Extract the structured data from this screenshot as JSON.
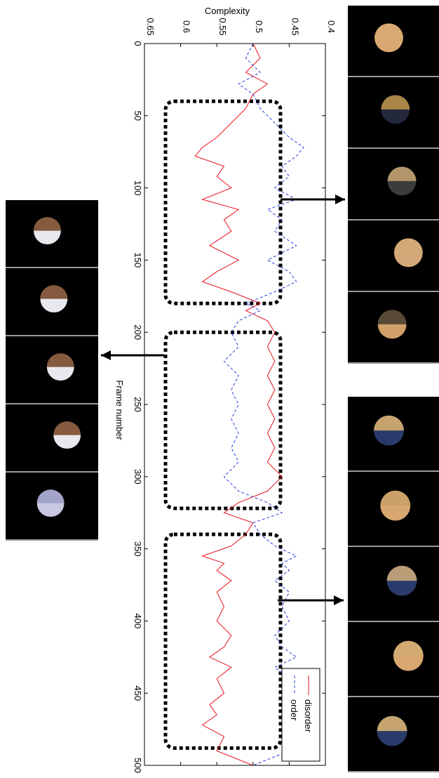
{
  "chart_data": {
    "type": "line",
    "orientation": "rotated-90-clockwise",
    "xlabel": "Frame number",
    "ylabel": "Complexity",
    "xlim": [
      0,
      500
    ],
    "ylim": [
      0.4,
      0.65
    ],
    "x_ticks": [
      "0",
      "50",
      "100",
      "150",
      "200",
      "250",
      "300",
      "350",
      "400",
      "450",
      "500"
    ],
    "y_ticks": [
      "0.4",
      "0.45",
      "0.5",
      "0.55",
      "0.6",
      "0.65"
    ],
    "legend_position": "bottom-right",
    "series": [
      {
        "name": "disorder",
        "color": "#e8141e",
        "style": "solid",
        "x": [
          0,
          10,
          20,
          28,
          35,
          45,
          55,
          65,
          72,
          78,
          85,
          92,
          100,
          108,
          115,
          122,
          130,
          140,
          150,
          158,
          165,
          172,
          180,
          185,
          192,
          200,
          210,
          220,
          230,
          240,
          250,
          260,
          270,
          280,
          290,
          300,
          310,
          318,
          325,
          332,
          340,
          348,
          355,
          360,
          365,
          372,
          380,
          390,
          400,
          410,
          418,
          425,
          432,
          440,
          450,
          458,
          465,
          472,
          480,
          490,
          500
        ],
        "y": [
          0.5,
          0.49,
          0.51,
          0.48,
          0.5,
          0.51,
          0.53,
          0.55,
          0.57,
          0.58,
          0.54,
          0.55,
          0.53,
          0.57,
          0.52,
          0.54,
          0.53,
          0.56,
          0.52,
          0.55,
          0.57,
          0.53,
          0.49,
          0.51,
          0.48,
          0.47,
          0.48,
          0.47,
          0.48,
          0.47,
          0.48,
          0.47,
          0.48,
          0.47,
          0.48,
          0.46,
          0.48,
          0.52,
          0.54,
          0.5,
          0.51,
          0.53,
          0.57,
          0.54,
          0.55,
          0.53,
          0.55,
          0.54,
          0.55,
          0.53,
          0.54,
          0.56,
          0.53,
          0.55,
          0.54,
          0.56,
          0.55,
          0.57,
          0.54,
          0.55,
          0.5
        ]
      },
      {
        "name": "order",
        "color": "#2a3fe0",
        "style": "dashed",
        "x": [
          0,
          10,
          20,
          28,
          35,
          45,
          55,
          65,
          72,
          78,
          85,
          92,
          100,
          108,
          115,
          122,
          130,
          140,
          150,
          158,
          165,
          172,
          180,
          185,
          192,
          200,
          210,
          220,
          230,
          240,
          250,
          260,
          270,
          280,
          290,
          300,
          310,
          318,
          325,
          332,
          340,
          348,
          355,
          360,
          365,
          372,
          380,
          390,
          400,
          410,
          418,
          425,
          432,
          440,
          450,
          458,
          465,
          472,
          480,
          490,
          500
        ],
        "y": [
          0.5,
          0.51,
          0.49,
          0.52,
          0.5,
          0.49,
          0.47,
          0.45,
          0.43,
          0.44,
          0.46,
          0.45,
          0.47,
          0.44,
          0.48,
          0.46,
          0.47,
          0.44,
          0.48,
          0.45,
          0.44,
          0.47,
          0.51,
          0.49,
          0.52,
          0.53,
          0.52,
          0.54,
          0.52,
          0.53,
          0.52,
          0.53,
          0.52,
          0.53,
          0.52,
          0.54,
          0.52,
          0.48,
          0.46,
          0.5,
          0.49,
          0.47,
          0.44,
          0.46,
          0.45,
          0.47,
          0.45,
          0.46,
          0.45,
          0.47,
          0.46,
          0.44,
          0.47,
          0.45,
          0.46,
          0.44,
          0.45,
          0.43,
          0.46,
          0.45,
          0.5
        ]
      }
    ],
    "highlight_ranges": [
      [
        40,
        180
      ],
      [
        200,
        322
      ],
      [
        340,
        488
      ]
    ],
    "thumbnail_strips": [
      {
        "side": "left",
        "frames": 5,
        "linked_range_index": 1
      },
      {
        "side": "right",
        "frames": 5,
        "linked_range_index": 0
      },
      {
        "side": "right",
        "frames": 5,
        "linked_range_index": 2
      }
    ]
  }
}
